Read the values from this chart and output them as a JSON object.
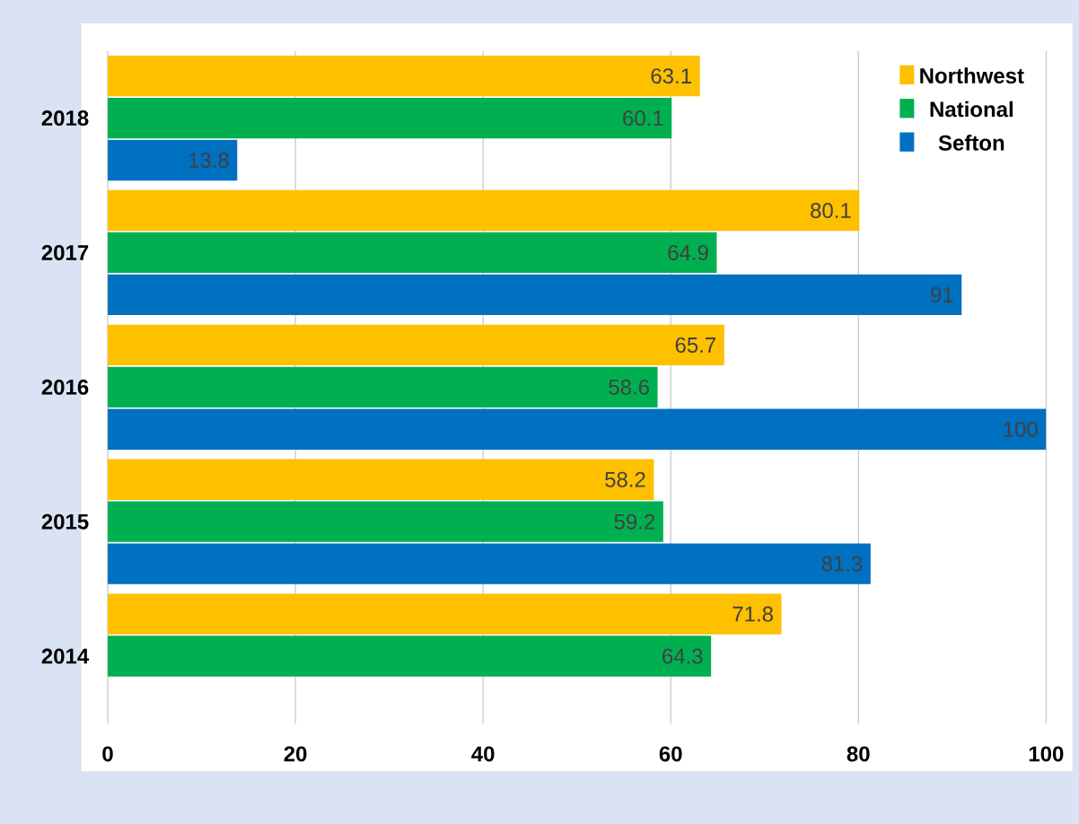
{
  "chart_data": {
    "type": "bar",
    "orientation": "horizontal",
    "categories": [
      "2018",
      "2017",
      "2016",
      "2015",
      "2014"
    ],
    "series": [
      {
        "name": "Northwest",
        "color": "#ffc000",
        "values": [
          63.1,
          80.1,
          65.7,
          58.2,
          71.8
        ]
      },
      {
        "name": "National",
        "color": "#00b050",
        "values": [
          60.1,
          64.9,
          58.6,
          59.2,
          64.3
        ]
      },
      {
        "name": "Sefton",
        "color": "#0070c0",
        "values": [
          13.8,
          91,
          100,
          81.3,
          null
        ]
      }
    ],
    "xlim": [
      0,
      100
    ],
    "xticks": [
      0,
      20,
      40,
      60,
      80,
      100
    ],
    "grid": "x",
    "legend": "top right",
    "data_labels": true
  }
}
